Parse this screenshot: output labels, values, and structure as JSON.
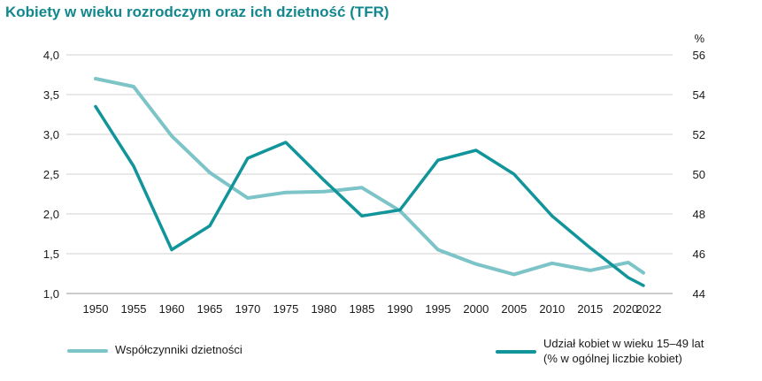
{
  "chart_data": {
    "type": "line",
    "title": "Kobiety w wieku rozrodczym oraz ich dzietność (TFR)",
    "x": [
      1950,
      1955,
      1960,
      1965,
      1970,
      1975,
      1980,
      1985,
      1990,
      1995,
      2000,
      2005,
      2010,
      2015,
      2020,
      2022
    ],
    "x_tick_labels": [
      "1950",
      "1955",
      "1960",
      "1965",
      "1970",
      "1975",
      "1980",
      "1985",
      "1990",
      "1995",
      "2000",
      "2005",
      "2010",
      "2015",
      "2020",
      "2022"
    ],
    "y_left": {
      "ylim": [
        1.0,
        4.0
      ],
      "ticks": [
        1.0,
        1.5,
        2.0,
        2.5,
        3.0,
        3.5,
        4.0
      ],
      "tick_labels": [
        "1,0",
        "1,5",
        "2,0",
        "2,5",
        "3,0",
        "3,5",
        "4,0"
      ]
    },
    "y_right": {
      "label": "%",
      "ylim": [
        44,
        56
      ],
      "ticks": [
        44,
        46,
        48,
        50,
        52,
        54,
        56
      ],
      "tick_labels": [
        "44",
        "46",
        "48",
        "50",
        "52",
        "54",
        "56"
      ]
    },
    "grid": true,
    "legend_position": "bottom",
    "series": [
      {
        "name": "Współczynniki dzietności",
        "axis": "left",
        "color": "#7cc4c7",
        "values": [
          3.7,
          3.6,
          2.98,
          2.52,
          2.2,
          2.27,
          2.28,
          2.33,
          2.04,
          1.55,
          1.37,
          1.24,
          1.38,
          1.29,
          1.39,
          1.26
        ]
      },
      {
        "name": "Udział kobiet w wieku 15–49 lat (% w ogólnej liczbie kobiet)",
        "name_lines": [
          "Udział kobiet w wieku 15–49 lat",
          "(% w ogólnej liczbie kobiet)"
        ],
        "axis": "right",
        "color": "#11959b",
        "values": [
          53.4,
          50.4,
          46.2,
          47.4,
          50.8,
          51.6,
          49.7,
          47.9,
          48.2,
          50.7,
          51.2,
          50.0,
          47.9,
          46.3,
          44.8,
          44.4
        ]
      }
    ]
  }
}
